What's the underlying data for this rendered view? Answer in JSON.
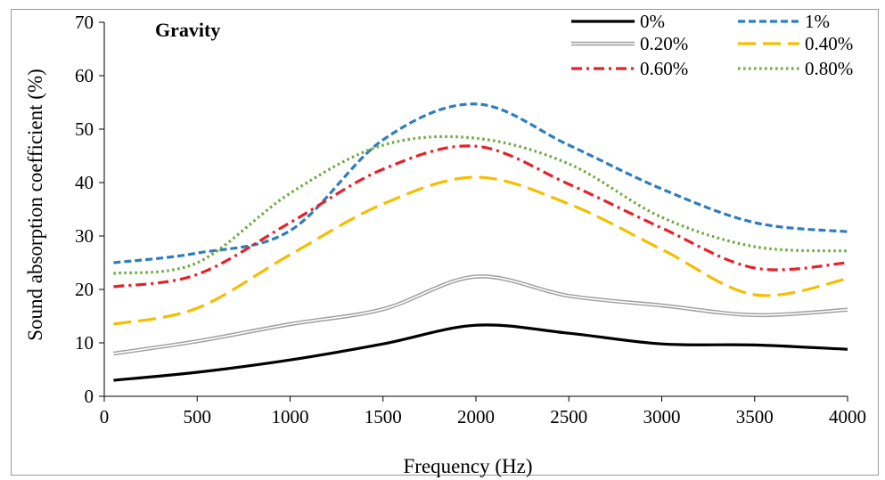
{
  "chart_data": {
    "type": "line",
    "title": "",
    "annotation": "Gravity",
    "xlabel": "Frequency (Hz)",
    "ylabel": "Sound absorption coefficient (%)",
    "xlim": [
      0,
      4000
    ],
    "ylim": [
      0,
      70
    ],
    "xticks": [
      "0",
      "500",
      "1000",
      "1500",
      "2000",
      "2500",
      "3000",
      "3500",
      "4000"
    ],
    "yticks": [
      "0",
      "10",
      "20",
      "30",
      "40",
      "50",
      "60",
      "70"
    ],
    "grid": false,
    "legend_position": "top-right",
    "x": [
      50,
      500,
      1000,
      1500,
      2000,
      2500,
      3000,
      3500,
      4000
    ],
    "series": [
      {
        "name": "0%",
        "color": "#000000",
        "style": "solid-bold",
        "values": [
          3.0,
          4.5,
          6.8,
          9.8,
          13.3,
          11.8,
          9.8,
          9.6,
          8.8
        ]
      },
      {
        "name": "1%",
        "color": "#2e7dbf",
        "style": "dashed",
        "values": [
          25.0,
          26.8,
          31.0,
          48.0,
          54.7,
          47.0,
          38.8,
          32.5,
          30.8
        ]
      },
      {
        "name": "0.20%",
        "color": "#9e9e9e",
        "style": "double",
        "values": [
          8.0,
          10.3,
          13.5,
          16.3,
          22.4,
          18.8,
          17.0,
          15.2,
          16.2
        ]
      },
      {
        "name": "0.40%",
        "color": "#f6be00",
        "style": "long-dash",
        "values": [
          13.5,
          16.5,
          26.5,
          36.0,
          41.0,
          36.0,
          27.5,
          19.0,
          22.0
        ]
      },
      {
        "name": "0.60%",
        "color": "#e8202a",
        "style": "dash-dot",
        "values": [
          20.5,
          22.8,
          32.5,
          42.5,
          46.8,
          39.7,
          31.5,
          24.0,
          25.0
        ]
      },
      {
        "name": "0.80%",
        "color": "#6aaa3a",
        "style": "dotted",
        "values": [
          23.0,
          25.0,
          38.0,
          47.0,
          48.3,
          43.5,
          33.5,
          28.0,
          27.2
        ]
      }
    ]
  }
}
